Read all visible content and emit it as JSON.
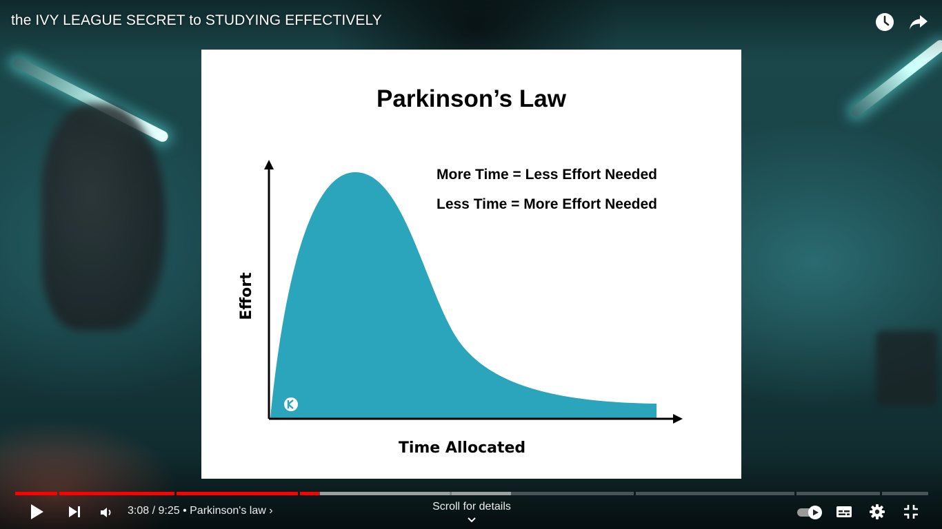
{
  "video": {
    "title": "the IVY LEAGUE SECRET to STUDYING EFFECTIVELY"
  },
  "top_icons": [
    "clock-icon",
    "share-arrow-icon"
  ],
  "slide": {
    "title": "Parkinson’s Law",
    "note_1": "More Time = Less Effort Needed",
    "note_2": "Less Time = More Effort Needed",
    "y_axis_label": "Effort",
    "x_axis_label": "Time Allocated",
    "curve_color": "#2aa5bc"
  },
  "player": {
    "current_time": "3:08",
    "separator": " / ",
    "duration": "9:25",
    "chapter_bullet": " • ",
    "chapter": "Parkinson's law",
    "chapter_chevron": "›",
    "scroll_hint": "Scroll for details",
    "played_fraction": 0.333,
    "buffered_fraction": 0.54,
    "accent_color": "#ff0000",
    "autoplay_enabled": true
  }
}
